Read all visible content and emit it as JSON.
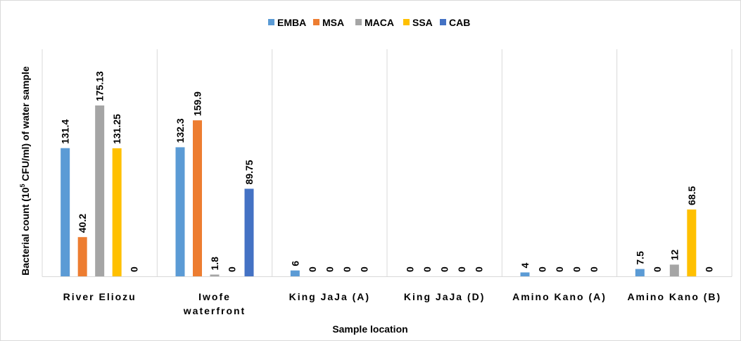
{
  "chart_data": {
    "type": "bar",
    "categories": [
      "River Eliozu",
      "Iwofe waterfront",
      "King JaJa (A)",
      "King JaJa (D)",
      "Amino Kano (A)",
      "Amino Kano (B)"
    ],
    "category_lines": [
      [
        "River Eliozu"
      ],
      [
        "Iwofe",
        "waterfront"
      ],
      [
        "King JaJa (A)"
      ],
      [
        "King JaJa (D)"
      ],
      [
        "Amino Kano (A)"
      ],
      [
        "Amino Kano (B)"
      ]
    ],
    "series": [
      {
        "name": "EMBA",
        "color": "#5B9BD5",
        "values": [
          131.4,
          132.3,
          6,
          0,
          4,
          7.5
        ]
      },
      {
        "name": "MSA",
        "color": "#ED7D31",
        "values": [
          40.2,
          159.9,
          0,
          0,
          0,
          0
        ]
      },
      {
        "name": "MACA",
        "color": "#A5A5A5",
        "values": [
          175.13,
          1.8,
          0,
          0,
          0,
          12
        ]
      },
      {
        "name": "SSA",
        "color": "#FFC000",
        "values": [
          131.25,
          0,
          0,
          0,
          0,
          68.5
        ]
      },
      {
        "name": "CAB",
        "color": "#4472C4",
        "values": [
          0,
          89.75,
          0,
          0,
          0,
          0
        ]
      }
    ],
    "data_labels": [
      [
        "131.4",
        "40.2",
        "175.13",
        "131.25",
        "0"
      ],
      [
        "132.3",
        "159.9",
        "1.8",
        "0",
        "89.75"
      ],
      [
        "6",
        "0",
        "0",
        "0",
        "0"
      ],
      [
        "0",
        "0",
        "0",
        "0",
        "0"
      ],
      [
        "4",
        "0",
        "0",
        "0",
        "0"
      ],
      [
        "7.5",
        "0",
        "12",
        "68.5",
        "0"
      ]
    ],
    "xlabel": "Sample location",
    "ylabel_prefix": "Bacterial count (10",
    "ylabel_sup": "5",
    "ylabel_suffix": " CFU/ml) of water sample",
    "ylim": [
      0,
      200
    ],
    "grid": "vertical separators between categories",
    "legend_position": "top-center"
  }
}
